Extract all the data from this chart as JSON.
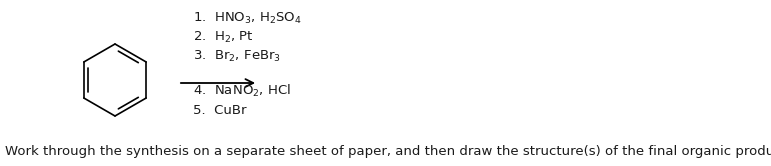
{
  "background_color": "#ffffff",
  "steps": [
    "1.  HNO$_3$, H$_2$SO$_4$",
    "2.  H$_2$, Pt",
    "3.  Br$_2$, FeBr$_3$",
    "4.  NaNO$_2$, HCl",
    "5.  CuBr"
  ],
  "footer": "Work through the synthesis on a separate sheet of paper, and then draw the structure(s) of the final organic product(s).",
  "text_color": "#1a1a1a",
  "font_size_steps": 9.5,
  "font_size_footer": 9.5
}
